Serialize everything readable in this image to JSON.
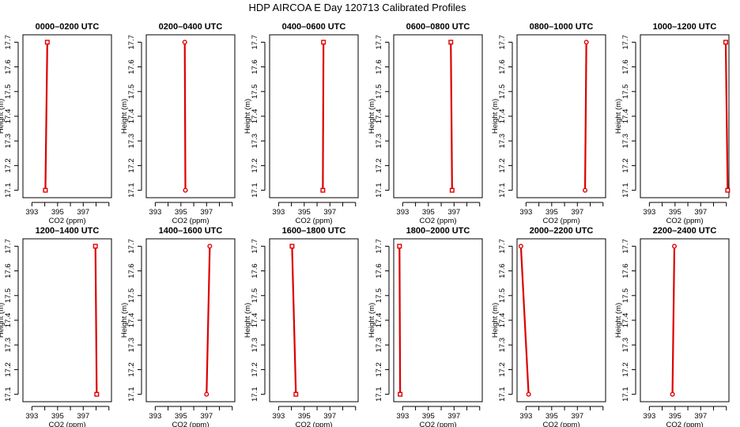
{
  "figure": {
    "title": "HDP AIRCOA E  Day 120713  Calibrated Profiles",
    "line_color": "#dd0000",
    "marker_color": "#dd0000"
  },
  "chart_data": [
    {
      "type": "line",
      "title": "0000–0200 UTC",
      "xlabel": "CO2 (ppm)",
      "ylabel": "Height (m)",
      "xlim": [
        392.3,
        399.2
      ],
      "ylim": [
        17.07,
        17.73
      ],
      "xticks": [
        393,
        395,
        397
      ],
      "xticks_minor": [
        394,
        396,
        398,
        399
      ],
      "yticks": [
        17.1,
        17.2,
        17.3,
        17.4,
        17.5,
        17.6,
        17.7
      ],
      "grid": false,
      "marker": "square",
      "series": [
        {
          "points": [
            [
              394.05,
              17.1
            ],
            [
              394.2,
              17.7
            ]
          ]
        }
      ]
    },
    {
      "type": "line",
      "title": "0200–0400 UTC",
      "xlabel": "CO2 (ppm)",
      "ylabel": "Height (m)",
      "xlim": [
        392.3,
        399.2
      ],
      "ylim": [
        17.07,
        17.73
      ],
      "xticks": [
        393,
        395,
        397
      ],
      "xticks_minor": [
        394,
        396,
        398,
        399
      ],
      "yticks": [
        17.1,
        17.2,
        17.3,
        17.4,
        17.5,
        17.6,
        17.7
      ],
      "grid": false,
      "marker": "circle",
      "series": [
        {
          "points": [
            [
              395.35,
              17.1
            ],
            [
              395.3,
              17.7
            ]
          ]
        }
      ]
    },
    {
      "type": "line",
      "title": "0400–0600 UTC",
      "xlabel": "CO2 (ppm)",
      "ylabel": "Height (m)",
      "xlim": [
        392.3,
        399.2
      ],
      "ylim": [
        17.07,
        17.73
      ],
      "xticks": [
        393,
        395,
        397
      ],
      "xticks_minor": [
        394,
        396,
        398,
        399
      ],
      "yticks": [
        17.1,
        17.2,
        17.3,
        17.4,
        17.5,
        17.6,
        17.7
      ],
      "grid": false,
      "marker": "square",
      "series": [
        {
          "points": [
            [
              396.45,
              17.1
            ],
            [
              396.5,
              17.7
            ]
          ]
        }
      ]
    },
    {
      "type": "line",
      "title": "0600–0800 UTC",
      "xlabel": "CO2 (ppm)",
      "ylabel": "Height (m)",
      "xlim": [
        392.3,
        399.2
      ],
      "ylim": [
        17.07,
        17.73
      ],
      "xticks": [
        393,
        395,
        397
      ],
      "xticks_minor": [
        394,
        396,
        398,
        399
      ],
      "yticks": [
        17.1,
        17.2,
        17.3,
        17.4,
        17.5,
        17.6,
        17.7
      ],
      "grid": false,
      "marker": "square",
      "series": [
        {
          "points": [
            [
              396.85,
              17.1
            ],
            [
              396.75,
              17.7
            ]
          ]
        }
      ]
    },
    {
      "type": "line",
      "title": "0800–1000 UTC",
      "xlabel": "CO2 (ppm)",
      "ylabel": "Height (m)",
      "xlim": [
        392.3,
        399.2
      ],
      "ylim": [
        17.07,
        17.73
      ],
      "xticks": [
        393,
        395,
        397
      ],
      "xticks_minor": [
        394,
        396,
        398,
        399
      ],
      "yticks": [
        17.1,
        17.2,
        17.3,
        17.4,
        17.5,
        17.6,
        17.7
      ],
      "grid": false,
      "marker": "circle",
      "series": [
        {
          "points": [
            [
              397.6,
              17.1
            ],
            [
              397.7,
              17.7
            ]
          ]
        }
      ]
    },
    {
      "type": "line",
      "title": "1000–1200 UTC",
      "xlabel": "CO2 (ppm)",
      "ylabel": "Height (m)",
      "xlim": [
        392.3,
        399.2
      ],
      "ylim": [
        17.07,
        17.73
      ],
      "xticks": [
        393,
        395,
        397
      ],
      "xticks_minor": [
        394,
        396,
        398,
        399
      ],
      "yticks": [
        17.1,
        17.2,
        17.3,
        17.4,
        17.5,
        17.6,
        17.7
      ],
      "grid": false,
      "marker": "square",
      "series": [
        {
          "points": [
            [
              399.1,
              17.1
            ],
            [
              398.95,
              17.7
            ]
          ]
        }
      ]
    },
    {
      "type": "line",
      "title": "1200–1400 UTC",
      "xlabel": "CO2 (ppm)",
      "ylabel": "Height (m)",
      "xlim": [
        392.3,
        399.2
      ],
      "ylim": [
        17.07,
        17.73
      ],
      "xticks": [
        393,
        395,
        397
      ],
      "xticks_minor": [
        394,
        396,
        398,
        399
      ],
      "yticks": [
        17.1,
        17.2,
        17.3,
        17.4,
        17.5,
        17.6,
        17.7
      ],
      "grid": false,
      "marker": "square",
      "series": [
        {
          "points": [
            [
              398.05,
              17.1
            ],
            [
              397.95,
              17.7
            ]
          ]
        }
      ]
    },
    {
      "type": "line",
      "title": "1400–1600 UTC",
      "xlabel": "CO2 (ppm)",
      "ylabel": "Height (m)",
      "xlim": [
        392.3,
        399.2
      ],
      "ylim": [
        17.07,
        17.73
      ],
      "xticks": [
        393,
        395,
        397
      ],
      "xticks_minor": [
        394,
        396,
        398,
        399
      ],
      "yticks": [
        17.1,
        17.2,
        17.3,
        17.4,
        17.5,
        17.6,
        17.7
      ],
      "grid": false,
      "marker": "circle",
      "series": [
        {
          "points": [
            [
              397.0,
              17.1
            ],
            [
              397.25,
              17.7
            ]
          ]
        }
      ]
    },
    {
      "type": "line",
      "title": "1600–1800 UTC",
      "xlabel": "CO2 (ppm)",
      "ylabel": "Height (m)",
      "xlim": [
        392.3,
        399.2
      ],
      "ylim": [
        17.07,
        17.73
      ],
      "xticks": [
        393,
        395,
        397
      ],
      "xticks_minor": [
        394,
        396,
        398,
        399
      ],
      "yticks": [
        17.1,
        17.2,
        17.3,
        17.4,
        17.5,
        17.6,
        17.7
      ],
      "grid": false,
      "marker": "square",
      "series": [
        {
          "points": [
            [
              394.35,
              17.1
            ],
            [
              394.05,
              17.7
            ]
          ]
        }
      ]
    },
    {
      "type": "line",
      "title": "1800–2000 UTC",
      "xlabel": "CO2 (ppm)",
      "ylabel": "Height (m)",
      "xlim": [
        392.3,
        399.2
      ],
      "ylim": [
        17.07,
        17.73
      ],
      "xticks": [
        393,
        395,
        397
      ],
      "xticks_minor": [
        394,
        396,
        398,
        399
      ],
      "yticks": [
        17.1,
        17.2,
        17.3,
        17.4,
        17.5,
        17.6,
        17.7
      ],
      "grid": false,
      "marker": "square",
      "series": [
        {
          "points": [
            [
              392.8,
              17.1
            ],
            [
              392.75,
              17.7
            ]
          ]
        }
      ]
    },
    {
      "type": "line",
      "title": "2000–2200 UTC",
      "xlabel": "CO2 (ppm)",
      "ylabel": "Height (m)",
      "xlim": [
        392.3,
        399.2
      ],
      "ylim": [
        17.07,
        17.73
      ],
      "xticks": [
        393,
        395,
        397
      ],
      "xticks_minor": [
        394,
        396,
        398,
        399
      ],
      "yticks": [
        17.1,
        17.2,
        17.3,
        17.4,
        17.5,
        17.6,
        17.7
      ],
      "grid": false,
      "marker": "circle",
      "series": [
        {
          "points": [
            [
              393.2,
              17.1
            ],
            [
              392.6,
              17.7
            ]
          ]
        }
      ]
    },
    {
      "type": "line",
      "title": "2200–2400 UTC",
      "xlabel": "CO2 (ppm)",
      "ylabel": "Height (m)",
      "xlim": [
        392.3,
        399.2
      ],
      "ylim": [
        17.07,
        17.73
      ],
      "xticks": [
        393,
        395,
        397
      ],
      "xticks_minor": [
        394,
        396,
        398,
        399
      ],
      "yticks": [
        17.1,
        17.2,
        17.3,
        17.4,
        17.5,
        17.6,
        17.7
      ],
      "grid": false,
      "marker": "circle",
      "series": [
        {
          "points": [
            [
              394.8,
              17.1
            ],
            [
              394.95,
              17.7
            ]
          ]
        }
      ]
    }
  ]
}
